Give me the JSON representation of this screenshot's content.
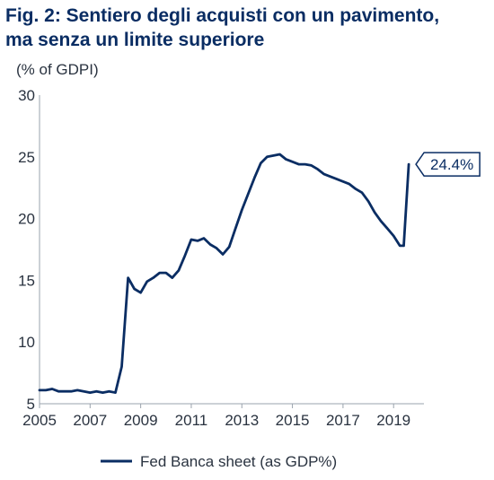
{
  "header": {
    "title_line1": "Fig. 2: Sentiero degli acquisti con un pavimento,",
    "title_line2": "ma senza un limite superiore"
  },
  "colors": {
    "series": "#0a2d63",
    "title": "#0a2d63",
    "axis": "#9aa3ad",
    "text": "#2a3340"
  },
  "chart_data": {
    "type": "line",
    "ylabel": "(% of GDPI)",
    "ylim": [
      5,
      30
    ],
    "yticks": [
      5,
      10,
      15,
      20,
      25,
      30
    ],
    "xlim": [
      2005,
      2020.2
    ],
    "xticks": [
      2005,
      2007,
      2009,
      2011,
      2013,
      2015,
      2017,
      2019
    ],
    "grid": false,
    "legend_position": "bottom-center",
    "annotation": {
      "text": "24.4%",
      "x": 2019.6,
      "y": 24.4
    },
    "series": [
      {
        "name": "Fed Banca sheet (as GDP%)",
        "color": "#0a2d63",
        "x": [
          2005.0,
          2005.25,
          2005.5,
          2005.75,
          2006.0,
          2006.25,
          2006.5,
          2006.75,
          2007.0,
          2007.25,
          2007.5,
          2007.75,
          2008.0,
          2008.25,
          2008.5,
          2008.75,
          2009.0,
          2009.25,
          2009.5,
          2009.75,
          2010.0,
          2010.25,
          2010.5,
          2010.75,
          2011.0,
          2011.25,
          2011.5,
          2011.75,
          2012.0,
          2012.25,
          2012.5,
          2012.75,
          2013.0,
          2013.25,
          2013.5,
          2013.75,
          2014.0,
          2014.25,
          2014.5,
          2014.75,
          2015.0,
          2015.25,
          2015.5,
          2015.75,
          2016.0,
          2016.25,
          2016.5,
          2016.75,
          2017.0,
          2017.25,
          2017.5,
          2017.75,
          2018.0,
          2018.25,
          2018.5,
          2018.75,
          2019.0,
          2019.25,
          2019.4,
          2019.6
        ],
        "y": [
          6.1,
          6.1,
          6.2,
          6.0,
          6.0,
          6.0,
          6.1,
          6.0,
          5.9,
          6.0,
          5.9,
          6.0,
          5.9,
          8.0,
          15.2,
          14.3,
          14.0,
          14.9,
          15.2,
          15.6,
          15.6,
          15.2,
          15.8,
          17.0,
          18.3,
          18.2,
          18.4,
          17.9,
          17.6,
          17.1,
          17.7,
          19.2,
          20.7,
          22.0,
          23.3,
          24.5,
          25.0,
          25.1,
          25.2,
          24.8,
          24.6,
          24.4,
          24.4,
          24.3,
          24.0,
          23.6,
          23.4,
          23.2,
          23.0,
          22.8,
          22.4,
          22.1,
          21.4,
          20.5,
          19.8,
          19.2,
          18.6,
          17.8,
          17.8,
          24.4
        ]
      }
    ]
  }
}
